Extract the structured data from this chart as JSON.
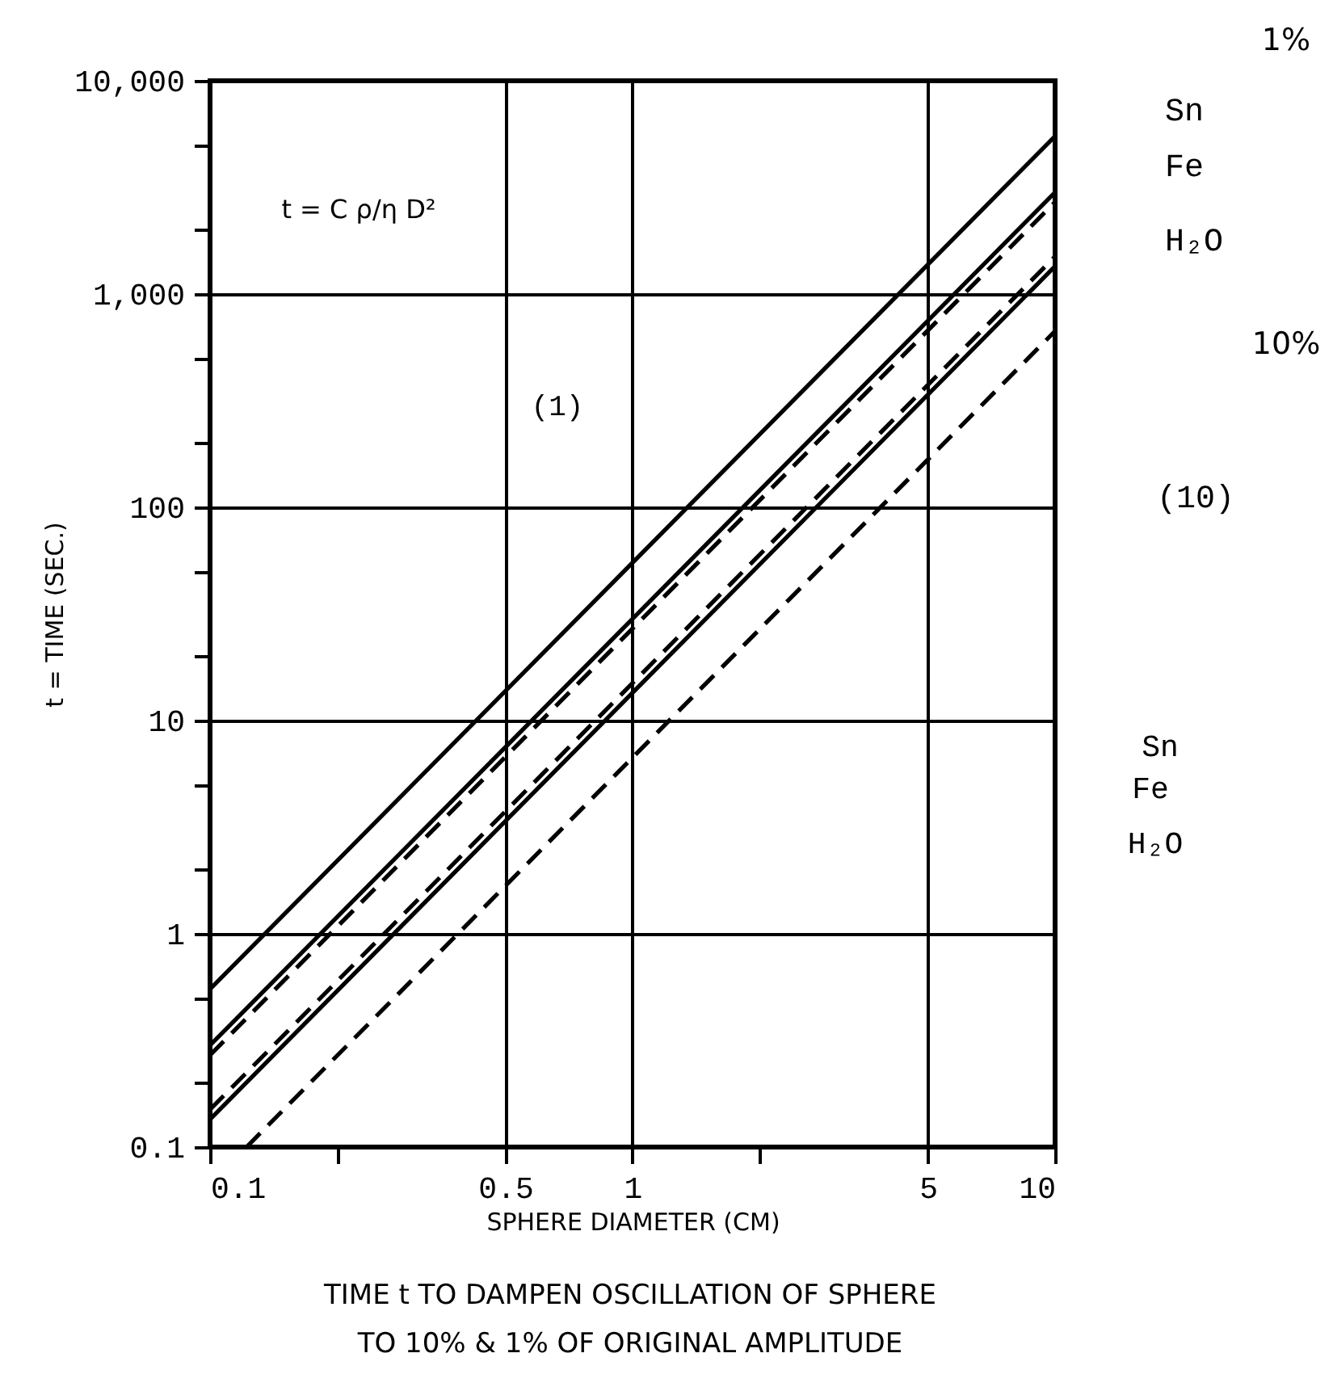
{
  "chart_data": {
    "type": "line",
    "xlabel": "SPHERE DIAMETER (CM)",
    "ylabel": "t = TIME (SEC.)",
    "annotations": [
      "t = C ρ/η D²",
      "(1)",
      "(10)",
      "Sn",
      "Fe",
      "H₂O",
      "1%",
      "10%",
      "TIME t TO DAMPEN OSCILLATION OF SPHERE",
      "TO 10% & 1% OF ORIGINAL AMPLITUDE"
    ],
    "log": "xy",
    "grid": true,
    "xlim": [
      0.1,
      10
    ],
    "xticks": [
      0.1,
      {
        "value": 0.2,
        "label": null
      },
      0.5,
      1,
      {
        "value": 2,
        "label": null
      },
      5,
      10
    ],
    "ylim": [
      0.1,
      10000
    ],
    "yticks": [
      0.1,
      {
        "value": 0.2,
        "label": null
      },
      {
        "value": 0.5,
        "label": null
      },
      1,
      {
        "value": 2,
        "label": null
      },
      {
        "value": 5,
        "label": null
      },
      10,
      {
        "value": 20,
        "label": null
      },
      {
        "value": 50,
        "label": null
      },
      100,
      {
        "value": 200,
        "label": null
      },
      {
        "value": 500,
        "label": null
      },
      {
        "value": 1000,
        "label": "1,000"
      },
      {
        "value": 2000,
        "label": null
      },
      {
        "value": 5000,
        "label": null
      },
      {
        "value": 10000,
        "label": "10,000"
      }
    ],
    "series": [
      {
        "name": "Sn",
        "color": "#000000",
        "line_style": "solid",
        "x": [
          0.1,
          10
        ],
        "values": [
          0.55,
          5500
        ]
      },
      {
        "color": "#000000",
        "line_style": "dashed",
        "x": [
          0.1,
          10
        ],
        "values": [
          0.27,
          2700
        ]
      },
      {
        "name": "Fe",
        "color": "#000000",
        "line_style": "solid",
        "x": [
          0.1,
          10
        ],
        "values": [
          0.3,
          3000
        ]
      },
      {
        "color": "#000000",
        "line_style": "dashed",
        "x": [
          0.1,
          10
        ],
        "values": [
          0.15,
          1500
        ]
      },
      {
        "name": "H₂O",
        "color": "#000000",
        "line_style": "solid",
        "x": [
          0.1,
          10
        ],
        "values": [
          0.135,
          1350
        ]
      },
      {
        "color": "#000000",
        "line_style": "dashed",
        "x": [
          0.122,
          10
        ],
        "values": [
          0.1,
          670
        ]
      }
    ]
  }
}
